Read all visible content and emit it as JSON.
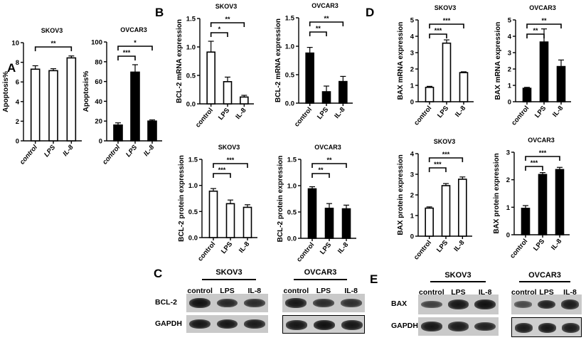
{
  "panels": {
    "A": "A",
    "B": "B",
    "C": "C",
    "D": "D",
    "E": "E"
  },
  "chart_data": [
    {
      "id": "A-SKOV3",
      "panel": "A",
      "type": "bar",
      "title": "SKOV3",
      "ylabel": "Apoptosis%",
      "xlabel": "",
      "categories": [
        "control",
        "LPS",
        "IL-8"
      ],
      "values": [
        7.3,
        7.15,
        8.45
      ],
      "errors": [
        0.35,
        0.2,
        0.2
      ],
      "ylim": [
        0,
        10
      ],
      "yticks": [
        0,
        2,
        4,
        6,
        8,
        10
      ],
      "ytick_labels": [
        "0",
        "2",
        "4",
        "6",
        "8",
        "10"
      ],
      "fill": "white",
      "significance": [
        {
          "from": 0,
          "to": 2,
          "label": "**"
        }
      ]
    },
    {
      "id": "A-OVCAR3",
      "panel": "A",
      "type": "bar",
      "title": "OVCAR3",
      "ylabel": "Apoptosis%",
      "xlabel": "",
      "categories": [
        "control",
        "LPS",
        "IL-8"
      ],
      "values": [
        16,
        69.5,
        20
      ],
      "errors": [
        2.2,
        7.5,
        1.2
      ],
      "ylim": [
        0,
        100
      ],
      "yticks": [
        0,
        20,
        40,
        60,
        80,
        100
      ],
      "ytick_labels": [
        "0",
        "20",
        "40",
        "60",
        "80",
        "100"
      ],
      "fill": "black",
      "significance": [
        {
          "from": 0,
          "to": 1,
          "label": "***"
        },
        {
          "from": 0,
          "to": 2,
          "label": "*"
        }
      ]
    },
    {
      "id": "B-SKOV3-mRNA",
      "panel": "B",
      "type": "bar",
      "title": "SKOV3",
      "ylabel": "BCL-2 mRNA expression",
      "xlabel": "",
      "categories": [
        "control",
        "LPS",
        "IL-8"
      ],
      "values": [
        0.91,
        0.39,
        0.12
      ],
      "errors": [
        0.19,
        0.08,
        0.03
      ],
      "ylim": [
        0,
        1.5
      ],
      "yticks": [
        0,
        0.5,
        1.0,
        1.5
      ],
      "ytick_labels": [
        "0.0",
        "0.5",
        "1.0",
        "1.5"
      ],
      "fill": "white",
      "significance": [
        {
          "from": 0,
          "to": 1,
          "label": "*"
        },
        {
          "from": 0,
          "to": 2,
          "label": "**"
        }
      ]
    },
    {
      "id": "B-OVCAR3-mRNA",
      "panel": "B",
      "type": "bar",
      "title": "OVCAR3",
      "ylabel": "BCL-2 mRNA expression",
      "xlabel": "",
      "categories": [
        "control",
        "LPS",
        "IL-8"
      ],
      "values": [
        0.88,
        0.2,
        0.38
      ],
      "errors": [
        0.1,
        0.1,
        0.09
      ],
      "ylim": [
        0,
        1.5
      ],
      "yticks": [
        0,
        0.5,
        1.0,
        1.5
      ],
      "ytick_labels": [
        "0.0",
        "0.5",
        "1.0",
        "1.5"
      ],
      "fill": "black",
      "significance": [
        {
          "from": 0,
          "to": 1,
          "label": "**"
        },
        {
          "from": 0,
          "to": 2,
          "label": "**"
        }
      ]
    },
    {
      "id": "B-SKOV3-protein",
      "panel": "B",
      "type": "bar",
      "title": "SKOV3",
      "ylabel": "BCL-2 protein expression",
      "xlabel": "",
      "categories": [
        "control",
        "LPS",
        "IL-8"
      ],
      "values": [
        0.89,
        0.65,
        0.58
      ],
      "errors": [
        0.05,
        0.07,
        0.05
      ],
      "ylim": [
        0,
        1.5
      ],
      "yticks": [
        0,
        0.5,
        1.0,
        1.5
      ],
      "ytick_labels": [
        "0.0",
        "0.5",
        "1.0",
        "1.5"
      ],
      "fill": "white",
      "significance": [
        {
          "from": 0,
          "to": 1,
          "label": "***"
        },
        {
          "from": 0,
          "to": 2,
          "label": "***"
        }
      ]
    },
    {
      "id": "B-OVCAR3-protein",
      "panel": "B",
      "type": "bar",
      "title": "OVCAR3",
      "ylabel": "BCL-2 protein expression",
      "xlabel": "",
      "categories": [
        "control",
        "LPS",
        "IL-8"
      ],
      "values": [
        0.94,
        0.57,
        0.56
      ],
      "errors": [
        0.04,
        0.09,
        0.07
      ],
      "ylim": [
        0,
        1.5
      ],
      "yticks": [
        0,
        0.5,
        1.0,
        1.5
      ],
      "ytick_labels": [
        "0.0",
        "0.5",
        "1.0",
        "1.5"
      ],
      "fill": "black",
      "significance": [
        {
          "from": 0,
          "to": 1,
          "label": "**"
        },
        {
          "from": 0,
          "to": 2,
          "label": "**"
        }
      ]
    },
    {
      "id": "D-SKOV3-mRNA",
      "panel": "D",
      "type": "bar",
      "title": "SKOV3",
      "ylabel": "BAX mRNA expression",
      "xlabel": "",
      "categories": [
        "control",
        "LPS",
        "IL-8"
      ],
      "values": [
        0.88,
        3.58,
        1.78
      ],
      "errors": [
        0.06,
        0.2,
        0.05
      ],
      "ylim": [
        0,
        5
      ],
      "yticks": [
        0,
        1,
        2,
        3,
        4,
        5
      ],
      "ytick_labels": [
        "0",
        "1",
        "2",
        "3",
        "4",
        "5"
      ],
      "fill": "white",
      "significance": [
        {
          "from": 0,
          "to": 1,
          "label": "***"
        },
        {
          "from": 0,
          "to": 2,
          "label": "***"
        }
      ]
    },
    {
      "id": "D-OVCAR3-mRNA",
      "panel": "D",
      "type": "bar",
      "title": "OVCAR3",
      "ylabel": "BAX mRNA expression",
      "xlabel": "",
      "categories": [
        "control",
        "LPS",
        "IL-8"
      ],
      "values": [
        0.82,
        3.65,
        2.15
      ],
      "errors": [
        0.06,
        0.8,
        0.4
      ],
      "ylim": [
        0,
        5
      ],
      "yticks": [
        0,
        1,
        2,
        3,
        4,
        5
      ],
      "ytick_labels": [
        "0",
        "1",
        "2",
        "3",
        "4",
        "5"
      ],
      "fill": "black",
      "significance": [
        {
          "from": 0,
          "to": 1,
          "label": "**"
        },
        {
          "from": 0,
          "to": 2,
          "label": "**"
        }
      ]
    },
    {
      "id": "D-SKOV3-protein",
      "panel": "D",
      "type": "bar",
      "title": "SKOV3",
      "ylabel": "BAX protein expression",
      "xlabel": "",
      "categories": [
        "control",
        "LPS",
        "IL-8"
      ],
      "values": [
        1.36,
        2.45,
        2.76
      ],
      "errors": [
        0.06,
        0.1,
        0.11
      ],
      "ylim": [
        0,
        4
      ],
      "yticks": [
        0,
        1,
        2,
        3,
        4
      ],
      "ytick_labels": [
        "0",
        "1",
        "2",
        "3",
        "4"
      ],
      "fill": "white",
      "significance": [
        {
          "from": 0,
          "to": 1,
          "label": "***"
        },
        {
          "from": 0,
          "to": 2,
          "label": "***"
        }
      ]
    },
    {
      "id": "D-OVCAR3-protein",
      "panel": "D",
      "type": "bar",
      "title": "OVCAR3",
      "ylabel": "BAX protein expression",
      "xlabel": "",
      "categories": [
        "control",
        "LPS",
        "IL-8"
      ],
      "values": [
        0.96,
        2.19,
        2.37
      ],
      "errors": [
        0.1,
        0.07,
        0.08
      ],
      "ylim": [
        0,
        3
      ],
      "yticks": [
        0,
        1,
        2,
        3
      ],
      "ytick_labels": [
        "0",
        "1",
        "2",
        "3"
      ],
      "fill": "black",
      "significance": [
        {
          "from": 0,
          "to": 1,
          "label": "***"
        },
        {
          "from": 0,
          "to": 2,
          "label": "***"
        }
      ]
    }
  ],
  "blots": [
    {
      "panel": "C",
      "groups": [
        {
          "title": "SKOV3",
          "lanes": [
            "control",
            "LPS",
            "IL-8"
          ],
          "rows": [
            {
              "label": "BCL-2",
              "intensities": [
                1.0,
                0.8,
                0.75
              ]
            },
            {
              "label": "GAPDH",
              "intensities": [
                0.95,
                0.95,
                0.9
              ]
            }
          ]
        },
        {
          "title": "OVCAR3",
          "lanes": [
            "control",
            "LPS",
            "IL-8"
          ],
          "rows": [
            {
              "label": "BCL-2",
              "intensities": [
                0.95,
                0.75,
                0.72
              ]
            },
            {
              "label": "GAPDH",
              "intensities": [
                0.95,
                1.0,
                0.95
              ]
            }
          ]
        }
      ]
    },
    {
      "panel": "E",
      "groups": [
        {
          "title": "SKOV3",
          "lanes": [
            "control",
            "LPS",
            "IL-8"
          ],
          "rows": [
            {
              "label": "BAX",
              "intensities": [
                0.55,
                0.95,
                1.0
              ]
            },
            {
              "label": "GAPDH",
              "intensities": [
                0.95,
                0.9,
                0.85
              ]
            }
          ]
        },
        {
          "title": "OVCAR3",
          "lanes": [
            "control",
            "LPS",
            "IL-8"
          ],
          "rows": [
            {
              "label": "BAX",
              "intensities": [
                0.45,
                0.85,
                0.9
              ]
            },
            {
              "label": "GAPDH",
              "intensities": [
                0.9,
                0.95,
                0.9
              ]
            }
          ]
        }
      ]
    }
  ]
}
